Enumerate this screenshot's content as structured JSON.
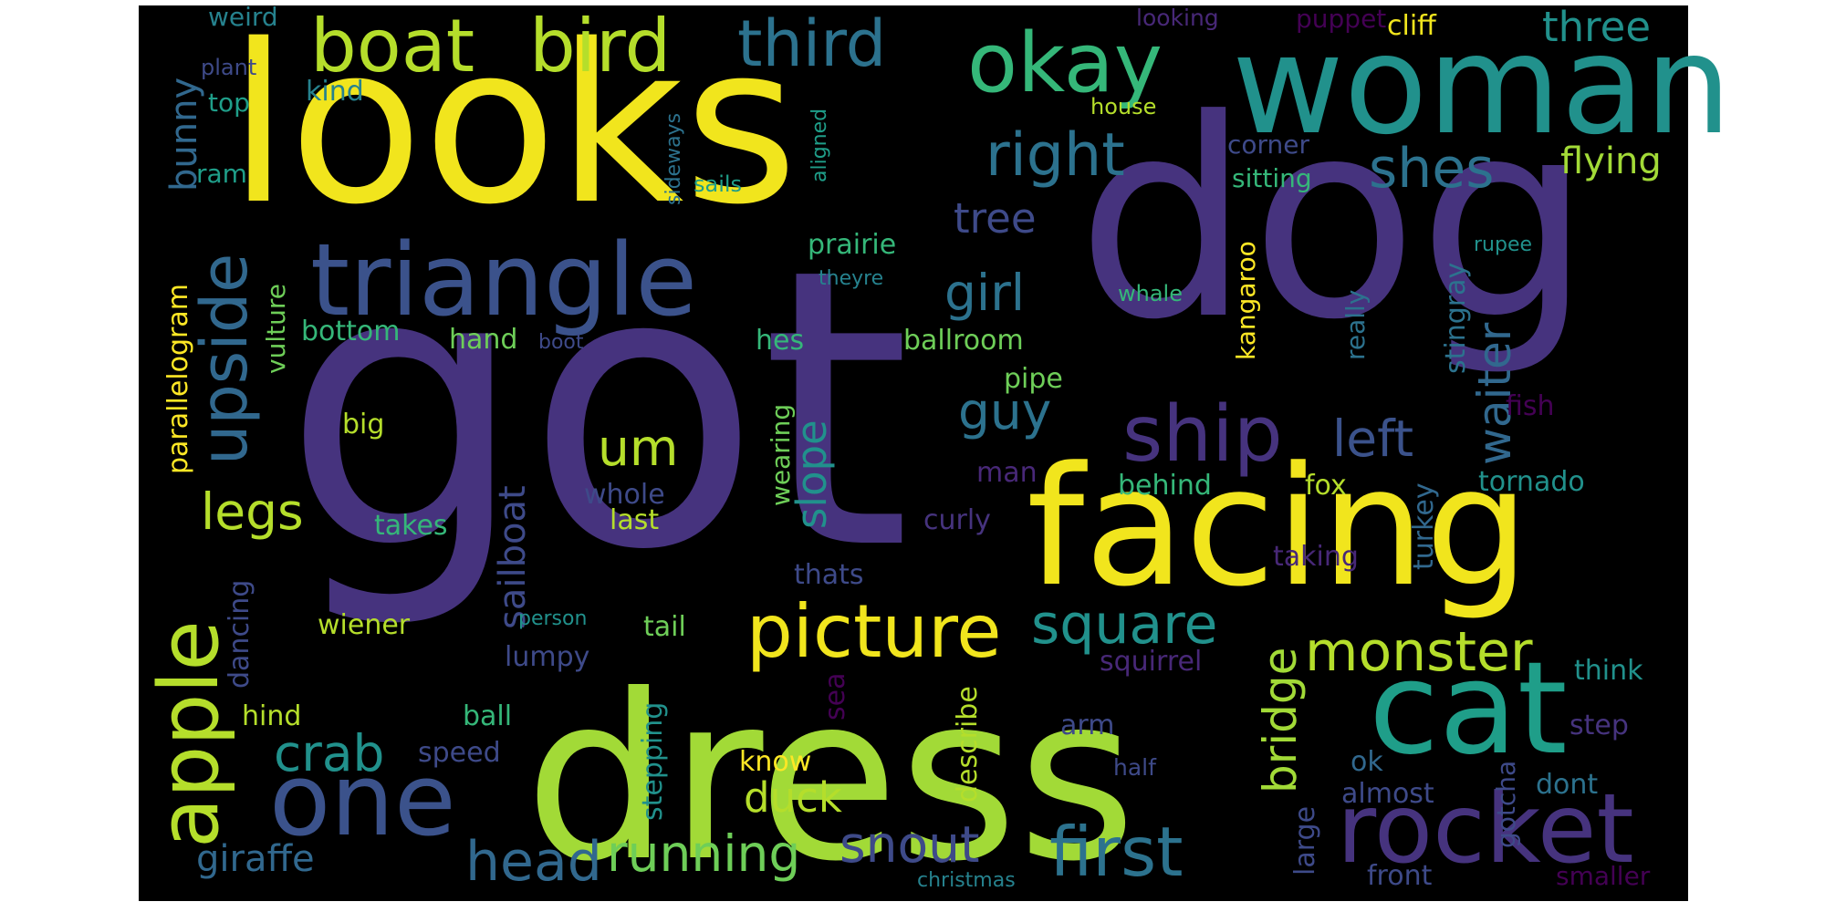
{
  "word_cloud": {
    "background": "#000000",
    "palette": {
      "purple_dark": "#440154",
      "indigo": "#482878",
      "violet": "#46337e",
      "blue": "#3e4a89",
      "steel": "#31688e",
      "teal_dark": "#26828e",
      "teal": "#1f9e89",
      "green": "#35b779",
      "lime": "#6ece58",
      "yellowgreen": "#b5de2b",
      "yellow": "#fde725"
    },
    "words": [
      {
        "text": "got",
        "color": "#46337e"
      },
      {
        "text": "dog",
        "color": "#46337e"
      },
      {
        "text": "looks",
        "color": "#f1e51d"
      },
      {
        "text": "dress",
        "color": "#a2da37"
      },
      {
        "text": "woman",
        "color": "#21918c"
      },
      {
        "text": "facing",
        "color": "#f1e51d"
      },
      {
        "text": "triangle",
        "color": "#3b528b"
      },
      {
        "text": "cat",
        "color": "#1f9e89"
      },
      {
        "text": "rocket",
        "color": "#46337e"
      },
      {
        "text": "one",
        "color": "#3b528b"
      },
      {
        "text": "okay",
        "color": "#35b779"
      },
      {
        "text": "boat",
        "color": "#b5de2b"
      },
      {
        "text": "bird",
        "color": "#b5de2b"
      },
      {
        "text": "third",
        "color": "#2c728e"
      },
      {
        "text": "ship",
        "color": "#46337e"
      },
      {
        "text": "picture",
        "color": "#f1e51d"
      },
      {
        "text": "apple",
        "color": "#b5de2b"
      },
      {
        "text": "upside",
        "color": "#31688e"
      },
      {
        "text": "right",
        "color": "#2c728e"
      },
      {
        "text": "first",
        "color": "#2c728e"
      },
      {
        "text": "monster",
        "color": "#b5de2b"
      },
      {
        "text": "running",
        "color": "#6ece58"
      },
      {
        "text": "head",
        "color": "#31688e"
      },
      {
        "text": "snout",
        "color": "#3e4a89"
      },
      {
        "text": "square",
        "color": "#21918c"
      },
      {
        "text": "shes",
        "color": "#2c728e"
      },
      {
        "text": "left",
        "color": "#3b528b"
      },
      {
        "text": "crab",
        "color": "#21918c"
      },
      {
        "text": "legs",
        "color": "#b5de2b"
      },
      {
        "text": "guy",
        "color": "#2c728e"
      },
      {
        "text": "um",
        "color": "#b5de2b"
      },
      {
        "text": "girl",
        "color": "#2c728e"
      },
      {
        "text": "bridge",
        "color": "#a2da37"
      },
      {
        "text": "three",
        "color": "#21918c"
      },
      {
        "text": "flying",
        "color": "#a2da37"
      },
      {
        "text": "waiter",
        "color": "#31688e"
      },
      {
        "text": "tree",
        "color": "#3e4a89"
      },
      {
        "text": "slope",
        "color": "#21918c"
      },
      {
        "text": "sailboat",
        "color": "#3e4a89"
      },
      {
        "text": "duck",
        "color": "#b5de2b"
      },
      {
        "text": "giraffe",
        "color": "#31688e"
      },
      {
        "text": "bunny",
        "color": "#31688e"
      },
      {
        "text": "cliff",
        "color": "#f1e51d"
      },
      {
        "text": "puppet",
        "color": "#440154"
      },
      {
        "text": "weird",
        "color": "#26828e"
      },
      {
        "text": "looking",
        "color": "#482878"
      },
      {
        "text": "plant",
        "color": "#3e4a89"
      },
      {
        "text": "kind",
        "color": "#26828e"
      },
      {
        "text": "top",
        "color": "#1f9e89"
      },
      {
        "text": "ram",
        "color": "#1f9e89"
      },
      {
        "text": "aligned",
        "color": "#1f9e89"
      },
      {
        "text": "house",
        "color": "#b5de2b"
      },
      {
        "text": "sideways",
        "color": "#2c728e"
      },
      {
        "text": "sails",
        "color": "#1f9e89"
      },
      {
        "text": "corner",
        "color": "#3e4a89"
      },
      {
        "text": "sitting",
        "color": "#35b779"
      },
      {
        "text": "parallelogram",
        "color": "#fde725"
      },
      {
        "text": "vulture",
        "color": "#6ece58"
      },
      {
        "text": "prairie",
        "color": "#35b779"
      },
      {
        "text": "theyre",
        "color": "#26828e"
      },
      {
        "text": "whale",
        "color": "#35b779"
      },
      {
        "text": "rupee",
        "color": "#21918c"
      },
      {
        "text": "bottom",
        "color": "#35b779"
      },
      {
        "text": "hand",
        "color": "#6ece58"
      },
      {
        "text": "boot",
        "color": "#3e4a89"
      },
      {
        "text": "hes",
        "color": "#35b779"
      },
      {
        "text": "ballroom",
        "color": "#6ece58"
      },
      {
        "text": "kangaroo",
        "color": "#fde725"
      },
      {
        "text": "really",
        "color": "#2c728e"
      },
      {
        "text": "stingray",
        "color": "#2c728e"
      },
      {
        "text": "pipe",
        "color": "#6ece58"
      },
      {
        "text": "big",
        "color": "#b5de2b"
      },
      {
        "text": "fish",
        "color": "#440154"
      },
      {
        "text": "man",
        "color": "#482878"
      },
      {
        "text": "whole",
        "color": "#3e4a89"
      },
      {
        "text": "behind",
        "color": "#35b779"
      },
      {
        "text": "tornado",
        "color": "#21918c"
      },
      {
        "text": "fox",
        "color": "#b5de2b"
      },
      {
        "text": "wearing",
        "color": "#6ece58"
      },
      {
        "text": "takes",
        "color": "#35b779"
      },
      {
        "text": "last",
        "color": "#b5de2b"
      },
      {
        "text": "curly",
        "color": "#46337e"
      },
      {
        "text": "turkey",
        "color": "#31688e"
      },
      {
        "text": "taking",
        "color": "#482878"
      },
      {
        "text": "thats",
        "color": "#3e4a89"
      },
      {
        "text": "dancing",
        "color": "#3e4a89"
      },
      {
        "text": "person",
        "color": "#21918c"
      },
      {
        "text": "wiener",
        "color": "#b5de2b"
      },
      {
        "text": "tail",
        "color": "#6ece58"
      },
      {
        "text": "lumpy",
        "color": "#3e4a89"
      },
      {
        "text": "squirrel",
        "color": "#482878"
      },
      {
        "text": "think",
        "color": "#21918c"
      },
      {
        "text": "sea",
        "color": "#440154"
      },
      {
        "text": "describe",
        "color": "#b5de2b"
      },
      {
        "text": "stepping",
        "color": "#21918c"
      },
      {
        "text": "hind",
        "color": "#b5de2b"
      },
      {
        "text": "ball",
        "color": "#35b779"
      },
      {
        "text": "speed",
        "color": "#3e4a89"
      },
      {
        "text": "arm",
        "color": "#3e4a89"
      },
      {
        "text": "half",
        "color": "#3e4a89"
      },
      {
        "text": "step",
        "color": "#46337e"
      },
      {
        "text": "know",
        "color": "#fde725"
      },
      {
        "text": "ok",
        "color": "#31688e"
      },
      {
        "text": "almost",
        "color": "#3e4a89"
      },
      {
        "text": "dont",
        "color": "#2c728e"
      },
      {
        "text": "gotcha",
        "color": "#3e4a89"
      },
      {
        "text": "large",
        "color": "#3e4a89"
      },
      {
        "text": "front",
        "color": "#3e4a89"
      },
      {
        "text": "smaller",
        "color": "#440154"
      },
      {
        "text": "christmas",
        "color": "#26828e"
      }
    ]
  }
}
